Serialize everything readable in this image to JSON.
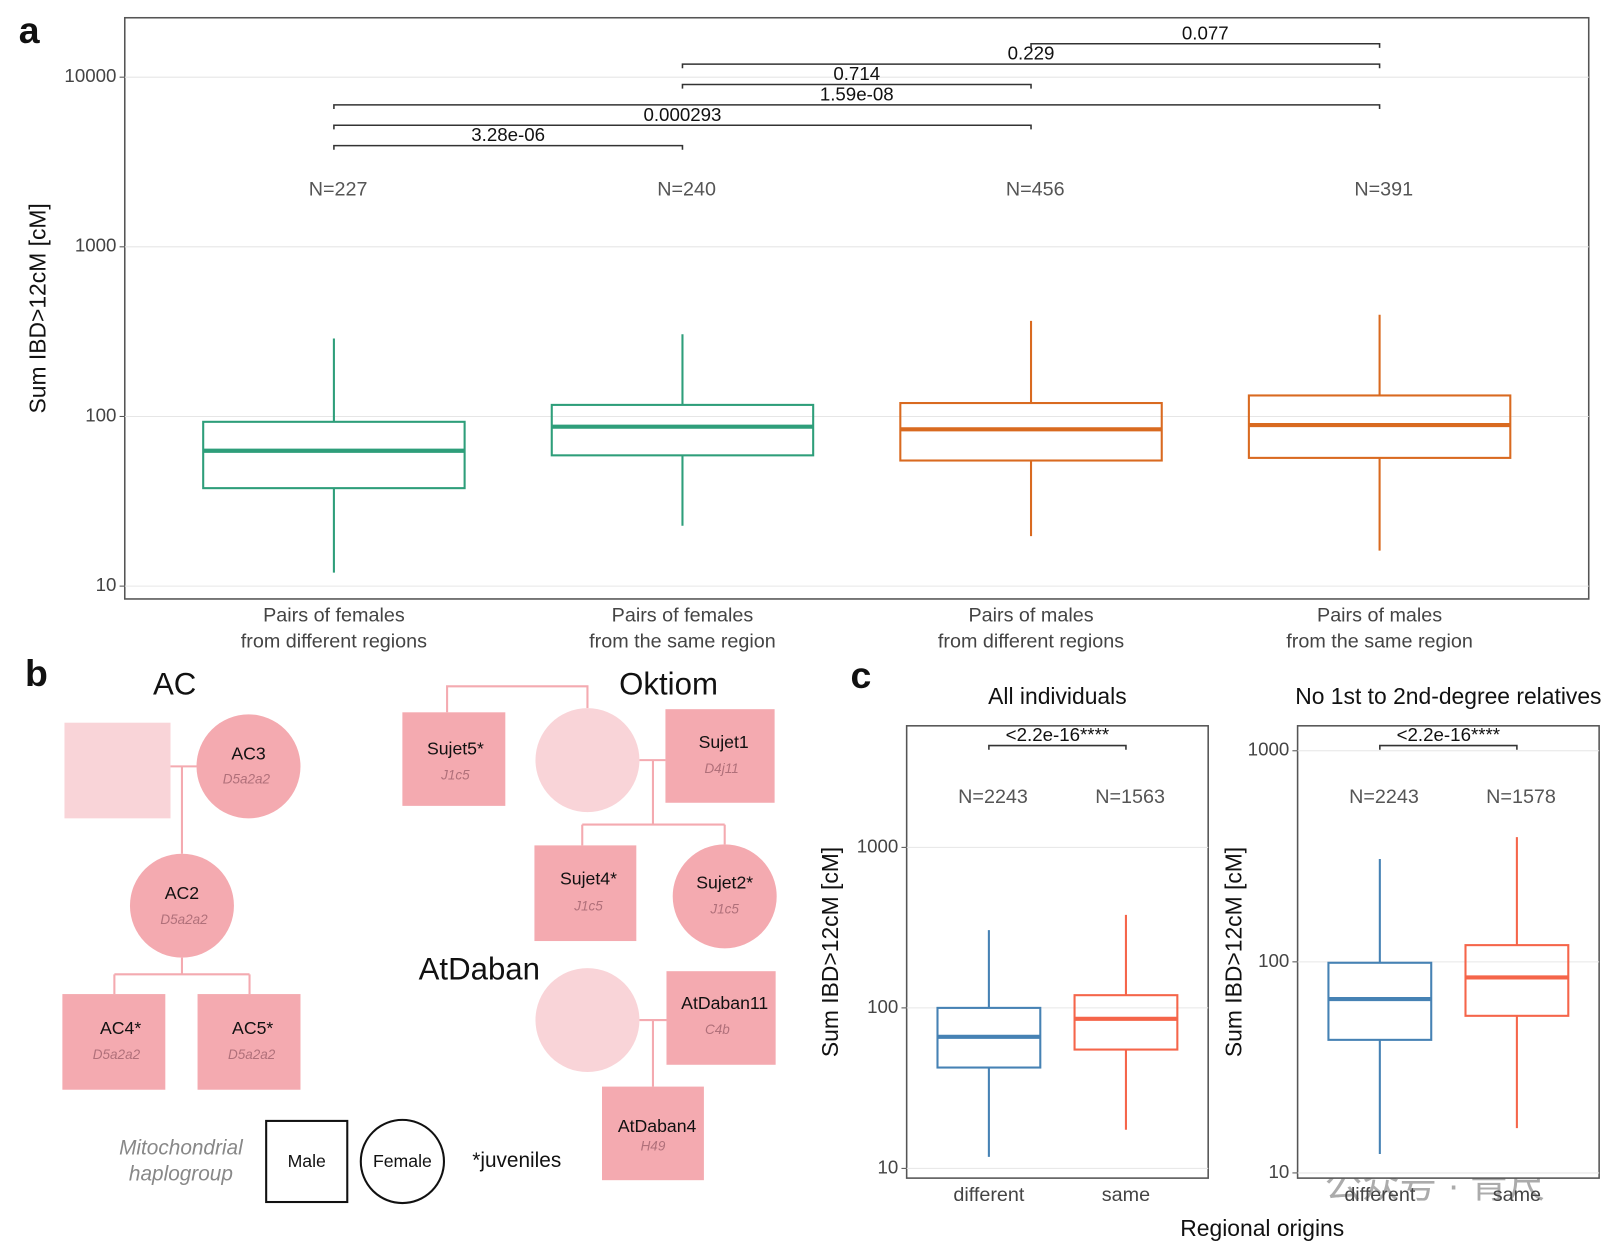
{
  "panel_labels": [
    "a",
    "b",
    "c"
  ],
  "chart_data": [
    {
      "type": "box",
      "ylabel": "Sum IBD>12cM [cM]",
      "log": true,
      "grid": true,
      "ylim": [
        8.4,
        22400
      ],
      "yticks": [
        10,
        100,
        1000,
        10000
      ],
      "categories": [
        [
          "Pairs of females",
          "from different regions"
        ],
        [
          "Pairs of females",
          "from the same region"
        ],
        [
          "Pairs of males",
          "from different regions"
        ],
        [
          "Pairs of males",
          "from the same region"
        ]
      ],
      "colors": [
        "#2e9e7a",
        "#2e9e7a",
        "#d96a20",
        "#d96a20"
      ],
      "n_labels": [
        "N=227",
        "N=240",
        "N=456",
        "N=391"
      ],
      "boxes": [
        {
          "whisker_low": 12,
          "q1": 37.8,
          "median": 62.8,
          "q3": 93,
          "whisker_high": 288
        },
        {
          "whisker_low": 22.7,
          "q1": 59,
          "median": 87,
          "q3": 117,
          "whisker_high": 305
        },
        {
          "whisker_low": 19.7,
          "q1": 55,
          "median": 84,
          "q3": 120,
          "whisker_high": 366
        },
        {
          "whisker_low": 16.2,
          "q1": 57,
          "median": 89,
          "q3": 133,
          "whisker_high": 398
        }
      ],
      "comparisons": [
        {
          "groups": [
            0,
            1
          ],
          "label": "3.28e-06"
        },
        {
          "groups": [
            0,
            2
          ],
          "label": "0.000293"
        },
        {
          "groups": [
            0,
            3
          ],
          "label": "1.59e-08"
        },
        {
          "groups": [
            1,
            2
          ],
          "label": "0.714"
        },
        {
          "groups": [
            1,
            3
          ],
          "label": "0.229"
        },
        {
          "groups": [
            2,
            3
          ],
          "label": "0.077"
        }
      ]
    },
    {
      "type": "box",
      "title": "All individuals",
      "ylabel": "Sum IBD>12cM [cM]",
      "xlabel": "Regional origins",
      "log": true,
      "grid": true,
      "ylim": [
        8.7,
        5720
      ],
      "yticks": [
        10,
        100,
        1000
      ],
      "categories": [
        [
          "different"
        ],
        [
          "same"
        ]
      ],
      "colors": [
        "#4682b4",
        "#f5654a"
      ],
      "n_labels": [
        "N=2243",
        "N=1563"
      ],
      "boxes": [
        {
          "whisker_low": 11.8,
          "q1": 42.5,
          "median": 66,
          "q3": 100,
          "whisker_high": 305
        },
        {
          "whisker_low": 17.4,
          "q1": 55,
          "median": 85.5,
          "q3": 120,
          "whisker_high": 380
        }
      ],
      "comparisons": [
        {
          "groups": [
            0,
            1
          ],
          "label": "<2.2e-16****"
        }
      ]
    },
    {
      "type": "box",
      "title": "No 1st to 2nd-degree relatives",
      "ylabel": "Sum IBD>12cM [cM]",
      "log": true,
      "grid": true,
      "ylim": [
        9.45,
        1313
      ],
      "yticks": [
        10,
        100,
        1000
      ],
      "categories": [
        [
          "different"
        ],
        [
          "same"
        ]
      ],
      "colors": [
        "#4682b4",
        "#f5654a"
      ],
      "n_labels": [
        "N=2243",
        "N=1578"
      ],
      "boxes": [
        {
          "whisker_low": 12.3,
          "q1": 42.7,
          "median": 66.6,
          "q3": 99,
          "whisker_high": 307
        },
        {
          "whisker_low": 16.3,
          "q1": 55.5,
          "median": 84.4,
          "q3": 120,
          "whisker_high": 390
        }
      ],
      "comparisons": [
        {
          "groups": [
            0,
            1
          ],
          "label": "<2.2e-16****"
        }
      ]
    }
  ],
  "diagram": {
    "families": [
      "AC",
      "Oktiom",
      "AtDaban"
    ],
    "nodes": [
      {
        "label": "AC3",
        "haplogroup": "D5a2a2"
      },
      {
        "label": "AC2",
        "haplogroup": "D5a2a2"
      },
      {
        "label": "AC4*",
        "haplogroup": "D5a2a2"
      },
      {
        "label": "AC5*",
        "haplogroup": "D5a2a2"
      },
      {
        "label": "Sujet5*",
        "haplogroup": "J1c5"
      },
      {
        "label": "Sujet1",
        "haplogroup": "D4j11"
      },
      {
        "label": "Sujet4*",
        "haplogroup": "J1c5"
      },
      {
        "label": "Sujet2*",
        "haplogroup": "J1c5"
      },
      {
        "label": "AtDaban11",
        "haplogroup": "C4b"
      },
      {
        "label": "AtDaban4",
        "haplogroup": "H49"
      }
    ],
    "legend": {
      "note": [
        "Mitochondrial",
        "haplogroup"
      ],
      "male": "Male",
      "female": "Female",
      "juveniles": "*juveniles"
    }
  },
  "watermark": "公众号 · 青尺"
}
